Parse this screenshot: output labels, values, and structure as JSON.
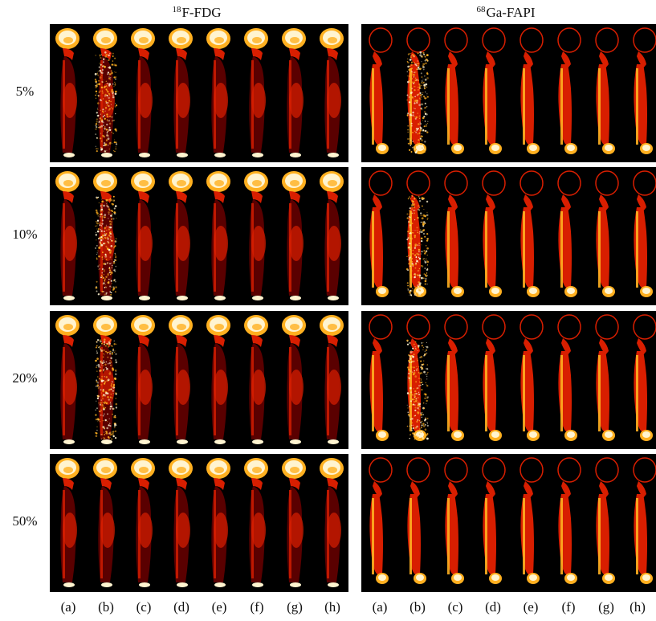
{
  "headers": {
    "left": {
      "sup": "18",
      "text": "F-FDG"
    },
    "right": {
      "sup": "68",
      "text": "Ga-FAPI"
    }
  },
  "rows": [
    "5%",
    "10%",
    "20%",
    "50%"
  ],
  "columns": [
    "(a)",
    "(b)",
    "(c)",
    "(d)",
    "(e)",
    "(f)",
    "(g)",
    "(h)"
  ],
  "tracers": [
    "fdg",
    "fapi"
  ],
  "colors": {
    "background": "#000000",
    "hot_dark": "#5a0000",
    "hot_mid": "#d81e00",
    "hot_bright": "#ffb020",
    "hot_white": "#fff4d0"
  },
  "noisy_column": "(b)"
}
